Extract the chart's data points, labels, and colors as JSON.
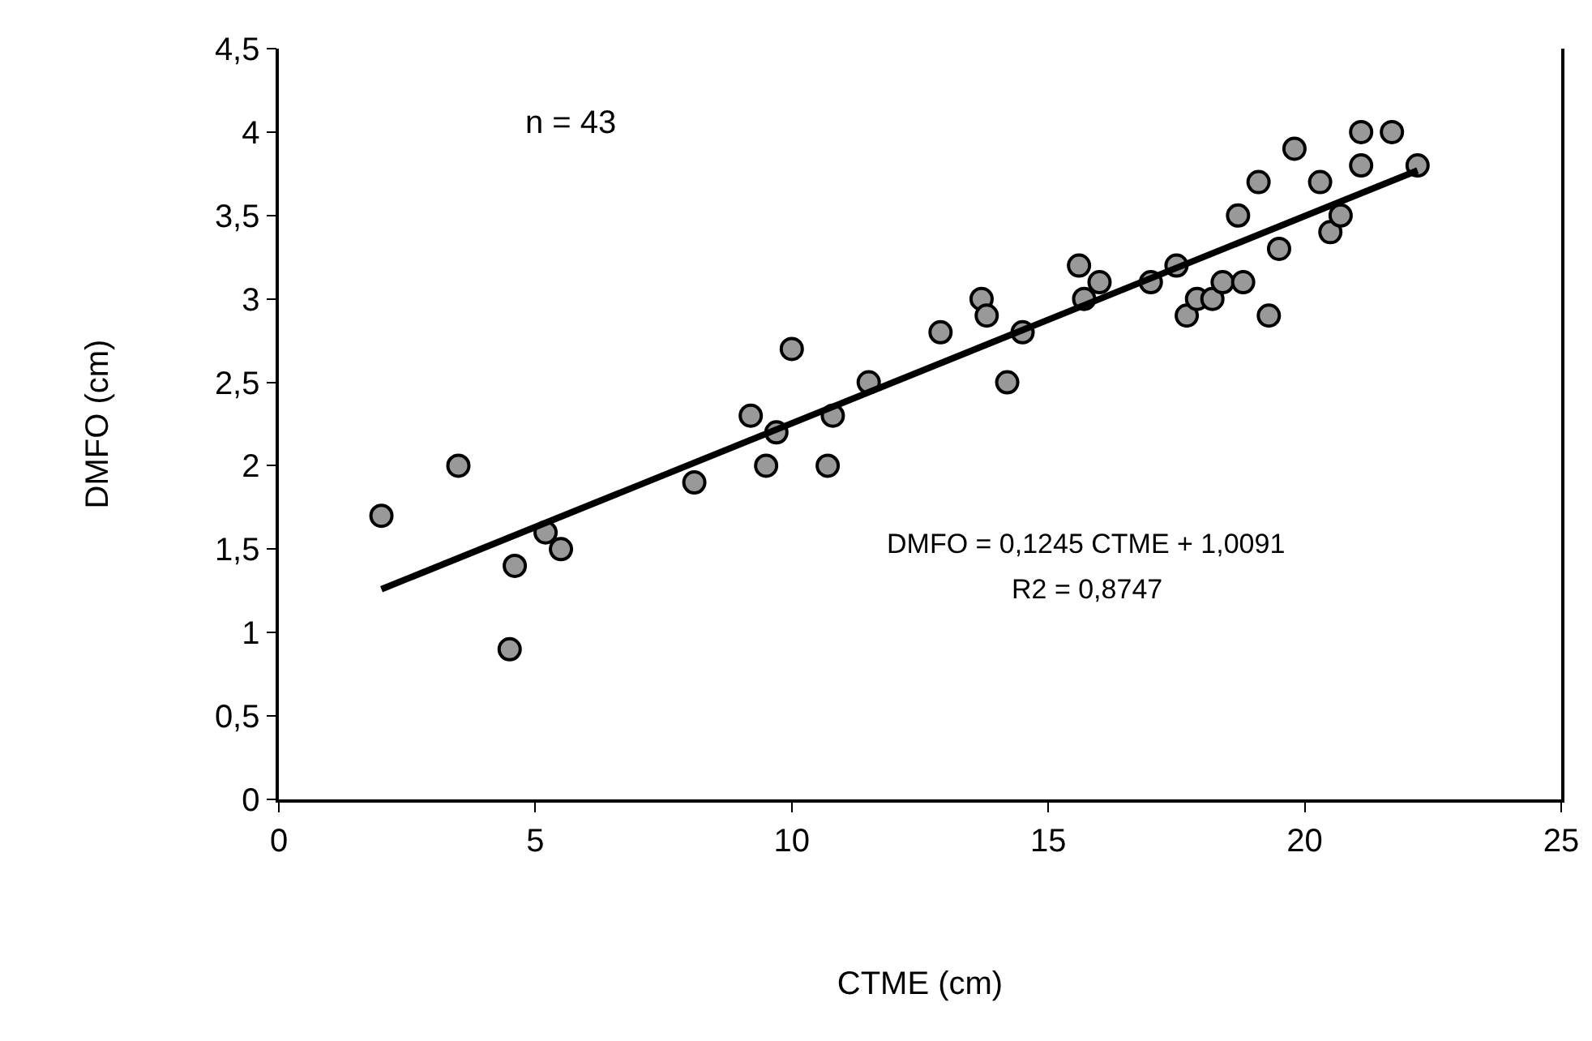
{
  "chart_data": {
    "type": "scatter",
    "xlabel": "CTME (cm)",
    "ylabel": "DMFO (cm)",
    "xlim": [
      0,
      25
    ],
    "xticks": [
      0,
      5,
      10,
      15,
      20,
      25
    ],
    "ylim": [
      0,
      4.5
    ],
    "yticks": [
      {
        "value": 0,
        "label": "0"
      },
      {
        "value": 0.5,
        "label": "0,5"
      },
      {
        "value": 1,
        "label": "1"
      },
      {
        "value": 1.5,
        "label": "1,5"
      },
      {
        "value": 2,
        "label": "2"
      },
      {
        "value": 2.5,
        "label": "2,5"
      },
      {
        "value": 3,
        "label": "3"
      },
      {
        "value": 3.5,
        "label": "3,5"
      },
      {
        "value": 4,
        "label": "4"
      },
      {
        "value": 4.5,
        "label": "4,5"
      }
    ],
    "grid": false,
    "legend": false,
    "annotations": [
      "n = 43",
      "DMFO = 0,1245 CTME + 1,0091",
      "R2 = 0,8747"
    ],
    "series": [
      {
        "color": "#999999",
        "marker": "circle",
        "x": [
          2.0,
          3.5,
          4.5,
          4.6,
          5.2,
          5.5,
          8.1,
          9.2,
          9.5,
          9.7,
          10.0,
          10.7,
          10.8,
          11.5,
          12.9,
          13.7,
          13.8,
          14.2,
          14.5,
          15.6,
          15.7,
          16.0,
          17.0,
          17.5,
          17.7,
          17.9,
          18.2,
          18.4,
          18.7,
          18.8,
          19.1,
          19.3,
          19.5,
          19.8,
          20.3,
          20.5,
          20.7,
          21.1,
          21.1,
          21.7,
          22.2
        ],
        "values": [
          1.7,
          2.0,
          0.9,
          1.4,
          1.6,
          1.5,
          1.9,
          2.3,
          2.0,
          2.2,
          2.7,
          2.0,
          2.3,
          2.5,
          2.8,
          3.0,
          2.9,
          2.5,
          2.8,
          3.2,
          3.0,
          3.1,
          3.1,
          3.2,
          2.9,
          3.0,
          3.0,
          3.1,
          3.5,
          3.1,
          3.7,
          2.9,
          3.3,
          3.9,
          3.7,
          3.4,
          3.5,
          4.0,
          3.8,
          4.0,
          3.8
        ]
      },
      {
        "type": "line",
        "color": "#000000",
        "line_style": "solid",
        "marker": "none",
        "x": [
          2.0,
          22.2
        ],
        "values": [
          1.26,
          3.77
        ]
      }
    ]
  }
}
